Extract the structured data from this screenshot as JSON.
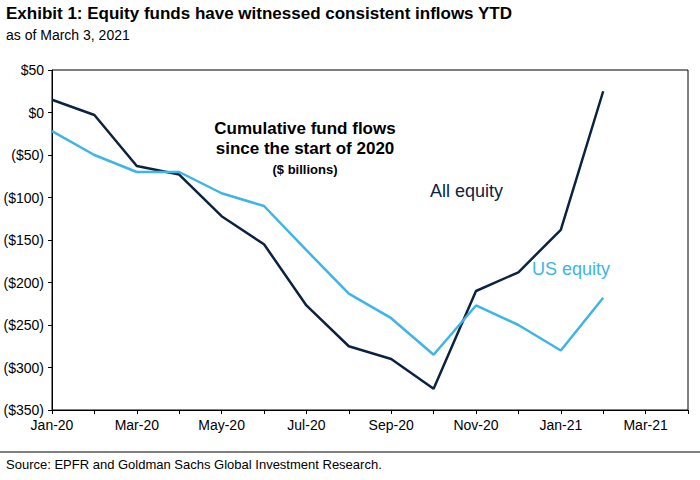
{
  "chart_data": {
    "type": "line",
    "title": "Exhibit 1: Equity funds have witnessed consistent inflows YTD",
    "subtitle": "as of March 3, 2021",
    "annotations": [
      "Cumulative fund flows",
      "since the start of 2020",
      "($ billions)"
    ],
    "source": "Source: EPFR and Goldman Sachs Global Investment Research.",
    "categories": [
      "Jan-20",
      null,
      "Mar-20",
      null,
      "May-20",
      null,
      "Jul-20",
      null,
      "Sep-20",
      null,
      "Nov-20",
      null,
      "Jan-21",
      null,
      "Mar-21",
      null
    ],
    "series": [
      {
        "name": "All equity",
        "color": "#0b2341",
        "values": [
          15,
          -3,
          -63,
          -73,
          -122,
          -155,
          -227,
          -275,
          -290,
          -325,
          -210,
          -188,
          -138,
          25,
          null,
          null
        ]
      },
      {
        "name": "US equity",
        "color": "#3db5e6",
        "values": [
          -22,
          -50,
          -70,
          -70,
          -95,
          -110,
          -162,
          -213,
          -242,
          -285,
          -227,
          -250,
          -280,
          -218,
          null,
          null
        ]
      }
    ],
    "ylim": [
      -350,
      50
    ],
    "yticks": [
      {
        "value": -350,
        "label": "($350)"
      },
      {
        "value": -300,
        "label": "($300)"
      },
      {
        "value": -250,
        "label": "($250)"
      },
      {
        "value": -200,
        "label": "($200)"
      },
      {
        "value": -150,
        "label": "($150)"
      },
      {
        "value": -100,
        "label": "($100)"
      },
      {
        "value": -50,
        "label": "($50)"
      },
      {
        "value": 0,
        "label": "$0"
      },
      {
        "value": 50,
        "label": "$50"
      }
    ],
    "grid": false
  }
}
